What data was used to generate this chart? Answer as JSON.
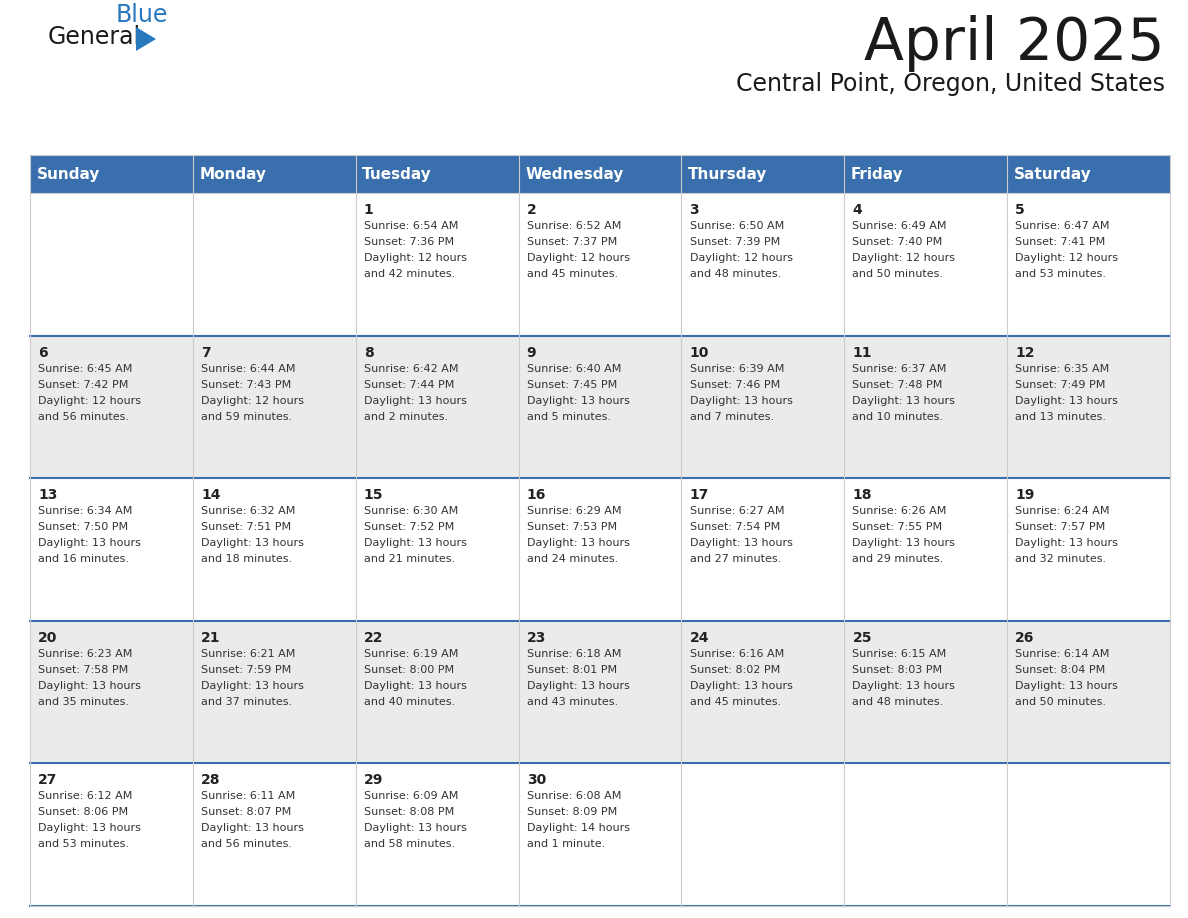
{
  "title": "April 2025",
  "subtitle": "Central Point, Oregon, United States",
  "header_color": "#3a6fad",
  "header_text_color": "#FFFFFF",
  "row_colors": [
    "#FFFFFF",
    "#EBEBEB",
    "#FFFFFF",
    "#EBEBEB",
    "#FFFFFF"
  ],
  "day_headers": [
    "Sunday",
    "Monday",
    "Tuesday",
    "Wednesday",
    "Thursday",
    "Friday",
    "Saturday"
  ],
  "days": [
    {
      "day": null,
      "col": 0,
      "row": 0
    },
    {
      "day": null,
      "col": 1,
      "row": 0
    },
    {
      "day": 1,
      "col": 2,
      "row": 0,
      "sunrise": "6:54 AM",
      "sunset": "7:36 PM",
      "daylight_line1": "12 hours",
      "daylight_line2": "and 42 minutes."
    },
    {
      "day": 2,
      "col": 3,
      "row": 0,
      "sunrise": "6:52 AM",
      "sunset": "7:37 PM",
      "daylight_line1": "12 hours",
      "daylight_line2": "and 45 minutes."
    },
    {
      "day": 3,
      "col": 4,
      "row": 0,
      "sunrise": "6:50 AM",
      "sunset": "7:39 PM",
      "daylight_line1": "12 hours",
      "daylight_line2": "and 48 minutes."
    },
    {
      "day": 4,
      "col": 5,
      "row": 0,
      "sunrise": "6:49 AM",
      "sunset": "7:40 PM",
      "daylight_line1": "12 hours",
      "daylight_line2": "and 50 minutes."
    },
    {
      "day": 5,
      "col": 6,
      "row": 0,
      "sunrise": "6:47 AM",
      "sunset": "7:41 PM",
      "daylight_line1": "12 hours",
      "daylight_line2": "and 53 minutes."
    },
    {
      "day": 6,
      "col": 0,
      "row": 1,
      "sunrise": "6:45 AM",
      "sunset": "7:42 PM",
      "daylight_line1": "12 hours",
      "daylight_line2": "and 56 minutes."
    },
    {
      "day": 7,
      "col": 1,
      "row": 1,
      "sunrise": "6:44 AM",
      "sunset": "7:43 PM",
      "daylight_line1": "12 hours",
      "daylight_line2": "and 59 minutes."
    },
    {
      "day": 8,
      "col": 2,
      "row": 1,
      "sunrise": "6:42 AM",
      "sunset": "7:44 PM",
      "daylight_line1": "13 hours",
      "daylight_line2": "and 2 minutes."
    },
    {
      "day": 9,
      "col": 3,
      "row": 1,
      "sunrise": "6:40 AM",
      "sunset": "7:45 PM",
      "daylight_line1": "13 hours",
      "daylight_line2": "and 5 minutes."
    },
    {
      "day": 10,
      "col": 4,
      "row": 1,
      "sunrise": "6:39 AM",
      "sunset": "7:46 PM",
      "daylight_line1": "13 hours",
      "daylight_line2": "and 7 minutes."
    },
    {
      "day": 11,
      "col": 5,
      "row": 1,
      "sunrise": "6:37 AM",
      "sunset": "7:48 PM",
      "daylight_line1": "13 hours",
      "daylight_line2": "and 10 minutes."
    },
    {
      "day": 12,
      "col": 6,
      "row": 1,
      "sunrise": "6:35 AM",
      "sunset": "7:49 PM",
      "daylight_line1": "13 hours",
      "daylight_line2": "and 13 minutes."
    },
    {
      "day": 13,
      "col": 0,
      "row": 2,
      "sunrise": "6:34 AM",
      "sunset": "7:50 PM",
      "daylight_line1": "13 hours",
      "daylight_line2": "and 16 minutes."
    },
    {
      "day": 14,
      "col": 1,
      "row": 2,
      "sunrise": "6:32 AM",
      "sunset": "7:51 PM",
      "daylight_line1": "13 hours",
      "daylight_line2": "and 18 minutes."
    },
    {
      "day": 15,
      "col": 2,
      "row": 2,
      "sunrise": "6:30 AM",
      "sunset": "7:52 PM",
      "daylight_line1": "13 hours",
      "daylight_line2": "and 21 minutes."
    },
    {
      "day": 16,
      "col": 3,
      "row": 2,
      "sunrise": "6:29 AM",
      "sunset": "7:53 PM",
      "daylight_line1": "13 hours",
      "daylight_line2": "and 24 minutes."
    },
    {
      "day": 17,
      "col": 4,
      "row": 2,
      "sunrise": "6:27 AM",
      "sunset": "7:54 PM",
      "daylight_line1": "13 hours",
      "daylight_line2": "and 27 minutes."
    },
    {
      "day": 18,
      "col": 5,
      "row": 2,
      "sunrise": "6:26 AM",
      "sunset": "7:55 PM",
      "daylight_line1": "13 hours",
      "daylight_line2": "and 29 minutes."
    },
    {
      "day": 19,
      "col": 6,
      "row": 2,
      "sunrise": "6:24 AM",
      "sunset": "7:57 PM",
      "daylight_line1": "13 hours",
      "daylight_line2": "and 32 minutes."
    },
    {
      "day": 20,
      "col": 0,
      "row": 3,
      "sunrise": "6:23 AM",
      "sunset": "7:58 PM",
      "daylight_line1": "13 hours",
      "daylight_line2": "and 35 minutes."
    },
    {
      "day": 21,
      "col": 1,
      "row": 3,
      "sunrise": "6:21 AM",
      "sunset": "7:59 PM",
      "daylight_line1": "13 hours",
      "daylight_line2": "and 37 minutes."
    },
    {
      "day": 22,
      "col": 2,
      "row": 3,
      "sunrise": "6:19 AM",
      "sunset": "8:00 PM",
      "daylight_line1": "13 hours",
      "daylight_line2": "and 40 minutes."
    },
    {
      "day": 23,
      "col": 3,
      "row": 3,
      "sunrise": "6:18 AM",
      "sunset": "8:01 PM",
      "daylight_line1": "13 hours",
      "daylight_line2": "and 43 minutes."
    },
    {
      "day": 24,
      "col": 4,
      "row": 3,
      "sunrise": "6:16 AM",
      "sunset": "8:02 PM",
      "daylight_line1": "13 hours",
      "daylight_line2": "and 45 minutes."
    },
    {
      "day": 25,
      "col": 5,
      "row": 3,
      "sunrise": "6:15 AM",
      "sunset": "8:03 PM",
      "daylight_line1": "13 hours",
      "daylight_line2": "and 48 minutes."
    },
    {
      "day": 26,
      "col": 6,
      "row": 3,
      "sunrise": "6:14 AM",
      "sunset": "8:04 PM",
      "daylight_line1": "13 hours",
      "daylight_line2": "and 50 minutes."
    },
    {
      "day": 27,
      "col": 0,
      "row": 4,
      "sunrise": "6:12 AM",
      "sunset": "8:06 PM",
      "daylight_line1": "13 hours",
      "daylight_line2": "and 53 minutes."
    },
    {
      "day": 28,
      "col": 1,
      "row": 4,
      "sunrise": "6:11 AM",
      "sunset": "8:07 PM",
      "daylight_line1": "13 hours",
      "daylight_line2": "and 56 minutes."
    },
    {
      "day": 29,
      "col": 2,
      "row": 4,
      "sunrise": "6:09 AM",
      "sunset": "8:08 PM",
      "daylight_line1": "13 hours",
      "daylight_line2": "and 58 minutes."
    },
    {
      "day": 30,
      "col": 3,
      "row": 4,
      "sunrise": "6:08 AM",
      "sunset": "8:09 PM",
      "daylight_line1": "14 hours",
      "daylight_line2": "and 1 minute."
    },
    {
      "day": null,
      "col": 4,
      "row": 4
    },
    {
      "day": null,
      "col": 5,
      "row": 4
    },
    {
      "day": null,
      "col": 6,
      "row": 4
    }
  ],
  "num_rows": 5,
  "num_cols": 7,
  "logo_general_color": "#1a1a1a",
  "logo_blue_color": "#2878be",
  "logo_triangle_color": "#2878be",
  "divider_color": "#3a6fad",
  "grid_color": "#cccccc",
  "text_color": "#333333",
  "day_num_color": "#222222"
}
